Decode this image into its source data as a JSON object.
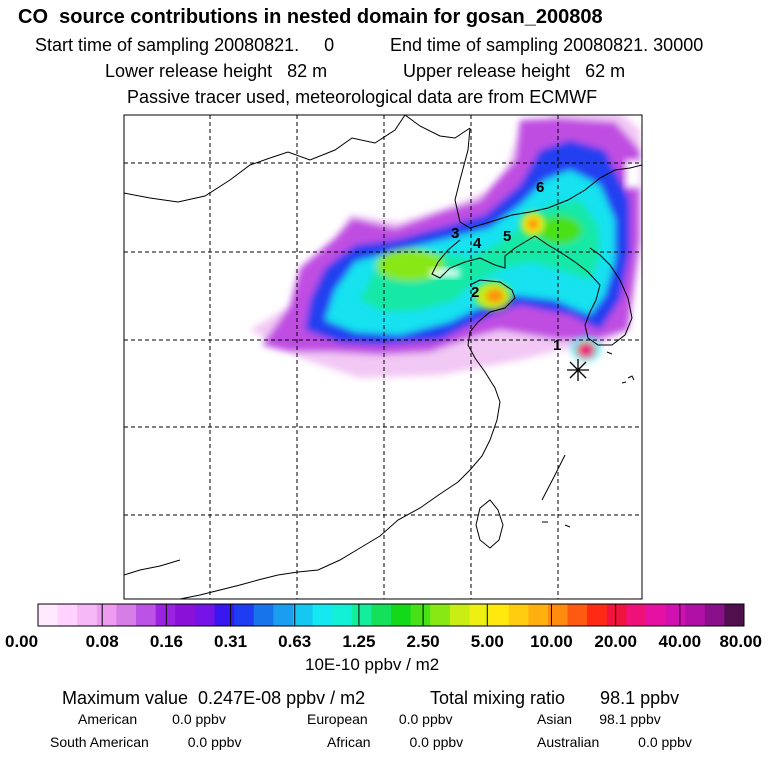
{
  "header": {
    "title": "CO  source contributions in nested domain for gosan_200808",
    "start_label": "Start time of sampling 20080821.     0",
    "end_label": "End time of sampling 20080821. 30000",
    "lower_label": "Lower release height   82 m",
    "upper_label": "Upper release height   62 m",
    "note": "Passive tracer used, meteorological data are from ECMWF"
  },
  "map": {
    "source_labels": [
      "1",
      "2",
      "3",
      "4",
      "5",
      "6"
    ],
    "receptor_symbol": "asterisk"
  },
  "legend": {
    "ticks": [
      "0.00",
      "0.08",
      "0.16",
      "0.31",
      "0.63",
      "1.25",
      "2.50",
      "5.00",
      "10.00",
      "20.00",
      "40.00",
      "80.00"
    ],
    "unit": "10E-10 ppbv / m2",
    "colors": [
      "#ffe9ff",
      "#ffd2ff",
      "#f6b8f6",
      "#ee9cf0",
      "#d77de6",
      "#bd52e6",
      "#9a22e0",
      "#8a12d8",
      "#7414e6",
      "#3a16f0",
      "#1e3cf2",
      "#1874ea",
      "#1a9ef0",
      "#14c8f2",
      "#14e8f0",
      "#12f0d6",
      "#14ee9c",
      "#14e05a",
      "#14d81a",
      "#48e016",
      "#88e814",
      "#c8ee14",
      "#eef012",
      "#ffe80e",
      "#ffcc10",
      "#ffb00e",
      "#ff8a10",
      "#ff5a12",
      "#ff2a14",
      "#f0143c",
      "#f0107a",
      "#e610a2",
      "#d010b0",
      "#b010a6",
      "#8a108a",
      "#50104e"
    ]
  },
  "footer": {
    "max_label": "Maximum value  0.247E-08 ppbv / m2",
    "total_label": "Total mixing ratio       98.1 ppbv",
    "american": "American         0.0 ppbv",
    "european": "European        0.0 ppbv",
    "asian": "Asian       98.1 ppbv",
    "south_american": "South American          0.0 ppbv",
    "african": "African          0.0 ppbv",
    "australian": "Australian          0.0 ppbv"
  }
}
